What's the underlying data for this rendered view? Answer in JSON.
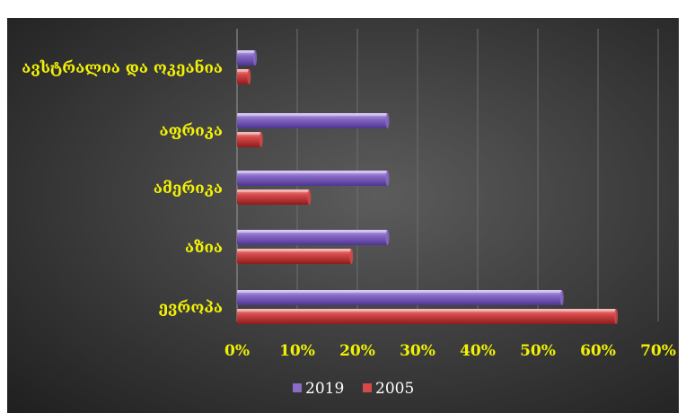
{
  "title": "",
  "chart_data": {
    "type": "bar",
    "orientation": "horizontal",
    "categories": [
      "ევროპა",
      "აზია",
      "ამერიკა",
      "აფრიკა",
      "ავსტრალია და ოკეანია"
    ],
    "series": [
      {
        "name": "2019",
        "values": [
          54,
          25,
          25,
          25,
          3
        ],
        "color": "#8a6cc8"
      },
      {
        "name": "2005",
        "values": [
          63,
          19,
          12,
          4,
          2
        ],
        "color": "#d84a4a"
      }
    ],
    "xlim": [
      0,
      70
    ],
    "xticks": [
      "0%",
      "10%",
      "20%",
      "30%",
      "40%",
      "50%",
      "60%",
      "70%"
    ],
    "grid": true,
    "legend": "bottom"
  }
}
